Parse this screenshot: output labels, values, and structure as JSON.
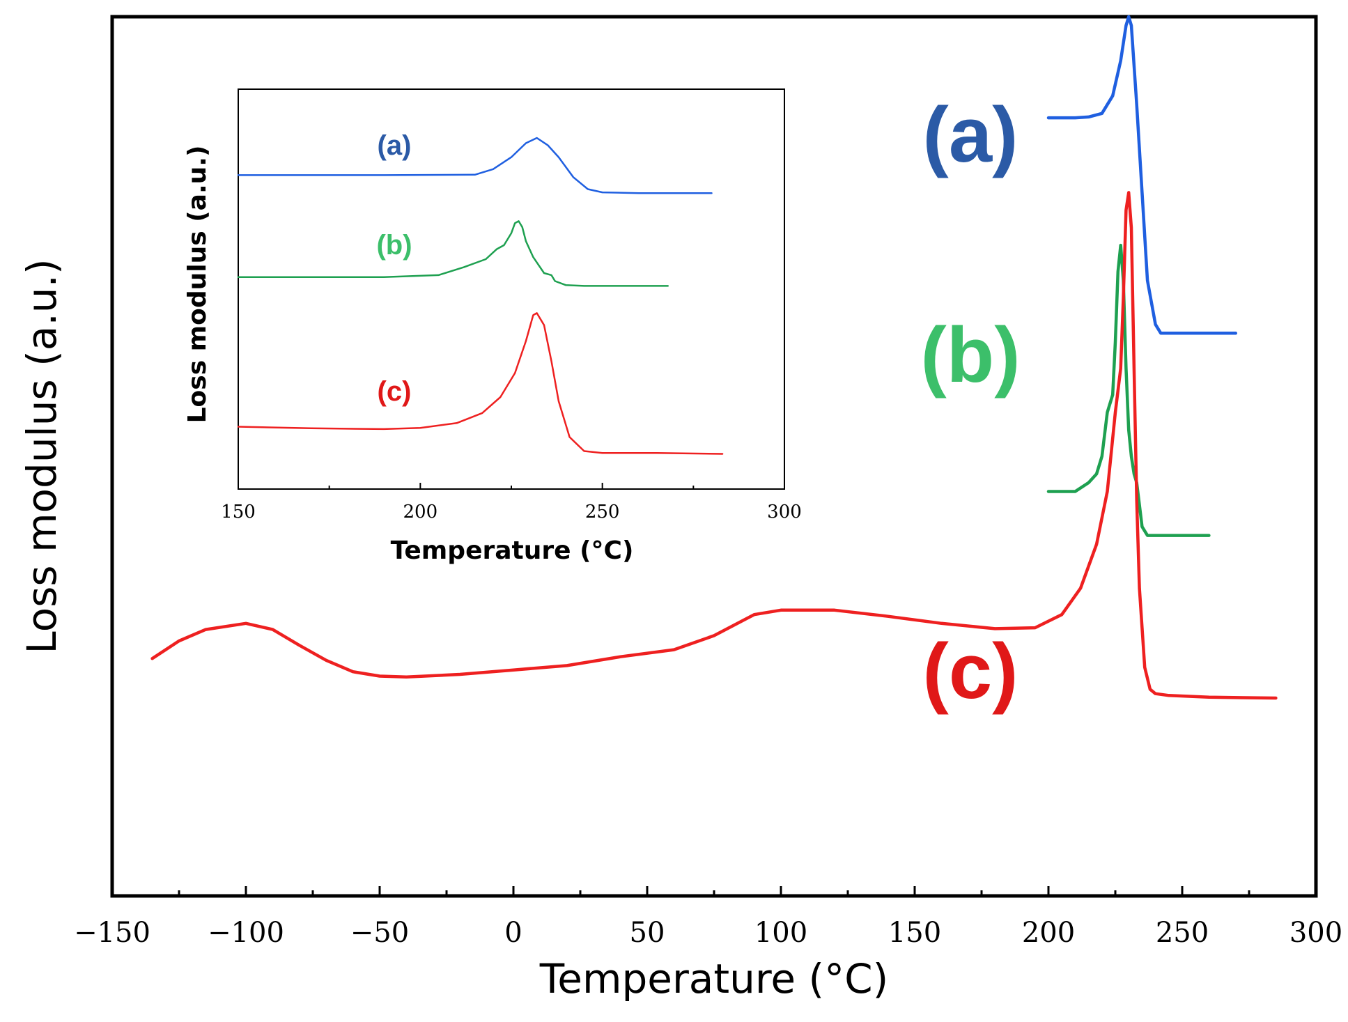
{
  "chart_data": [
    {
      "id": "main",
      "type": "line",
      "xlabel": "Temperature (°C)",
      "ylabel": "Loss modulus (a.u.)",
      "xlim": [
        -150,
        300
      ],
      "ylim": [
        0,
        1
      ],
      "xticks": [
        -150,
        -100,
        -50,
        0,
        50,
        100,
        150,
        200,
        250,
        300
      ],
      "xtick_labels": [
        "−150",
        "−100",
        "−50",
        "0",
        "50",
        "100",
        "150",
        "200",
        "250",
        "300"
      ],
      "y_ticks_shown": false,
      "grid": false,
      "series": [
        {
          "name": "(a)",
          "color": "#1f5fe0",
          "label_color": "#2b5aa6",
          "points": [
            [
              200,
              0.885
            ],
            [
              210,
              0.885
            ],
            [
              215,
              0.886
            ],
            [
              220,
              0.89
            ],
            [
              224,
              0.91
            ],
            [
              227,
              0.95
            ],
            [
              229,
              0.99
            ],
            [
              230,
              1.0
            ],
            [
              231,
              0.99
            ],
            [
              233,
              0.9
            ],
            [
              235,
              0.8
            ],
            [
              237,
              0.7
            ],
            [
              240,
              0.65
            ],
            [
              242,
              0.64
            ],
            [
              245,
              0.64
            ],
            [
              250,
              0.64
            ],
            [
              270,
              0.64
            ]
          ]
        },
        {
          "name": "(b)",
          "color": "#1ea050",
          "label_color": "#3cbf6a",
          "points": [
            [
              200,
              0.46
            ],
            [
              210,
              0.46
            ],
            [
              215,
              0.47
            ],
            [
              218,
              0.48
            ],
            [
              220,
              0.5
            ],
            [
              222,
              0.55
            ],
            [
              224,
              0.57
            ],
            [
              225,
              0.63
            ],
            [
              226,
              0.71
            ],
            [
              227,
              0.74
            ],
            [
              228,
              0.7
            ],
            [
              229,
              0.6
            ],
            [
              230,
              0.53
            ],
            [
              231,
              0.5
            ],
            [
              232,
              0.48
            ],
            [
              233,
              0.47
            ],
            [
              235,
              0.42
            ],
            [
              237,
              0.41
            ],
            [
              240,
              0.41
            ],
            [
              245,
              0.41
            ],
            [
              260,
              0.41
            ]
          ]
        },
        {
          "name": "(c)",
          "color": "#ee2020",
          "label_color": "#e01818",
          "points": [
            [
              -135,
              0.27
            ],
            [
              -125,
              0.29
            ],
            [
              -115,
              0.303
            ],
            [
              -100,
              0.31
            ],
            [
              -90,
              0.303
            ],
            [
              -80,
              0.285
            ],
            [
              -70,
              0.268
            ],
            [
              -60,
              0.255
            ],
            [
              -50,
              0.25
            ],
            [
              -40,
              0.249
            ],
            [
              -20,
              0.252
            ],
            [
              0,
              0.257
            ],
            [
              20,
              0.262
            ],
            [
              40,
              0.272
            ],
            [
              60,
              0.28
            ],
            [
              75,
              0.296
            ],
            [
              90,
              0.32
            ],
            [
              100,
              0.325
            ],
            [
              120,
              0.325
            ],
            [
              140,
              0.318
            ],
            [
              160,
              0.31
            ],
            [
              180,
              0.304
            ],
            [
              195,
              0.305
            ],
            [
              205,
              0.32
            ],
            [
              212,
              0.35
            ],
            [
              218,
              0.4
            ],
            [
              222,
              0.46
            ],
            [
              225,
              0.55
            ],
            [
              227,
              0.6
            ],
            [
              228,
              0.68
            ],
            [
              229,
              0.78
            ],
            [
              230,
              0.8
            ],
            [
              231,
              0.76
            ],
            [
              232,
              0.6
            ],
            [
              233,
              0.45
            ],
            [
              234,
              0.35
            ],
            [
              236,
              0.26
            ],
            [
              238,
              0.235
            ],
            [
              240,
              0.23
            ],
            [
              245,
              0.228
            ],
            [
              260,
              0.226
            ],
            [
              285,
              0.225
            ]
          ]
        }
      ]
    },
    {
      "id": "inset",
      "type": "line",
      "xlabel": "Temperature (°C)",
      "ylabel": "Loss modulus (a.u.)",
      "xlim": [
        150,
        300
      ],
      "ylim": [
        0,
        1
      ],
      "xticks": [
        150,
        200,
        250,
        300
      ],
      "xtick_labels": [
        "150",
        "200",
        "250",
        "300"
      ],
      "y_ticks_shown": false,
      "grid": false,
      "series": [
        {
          "name": "(a)",
          "color": "#1f5fe0",
          "label_color": "#2b5aa6",
          "points": [
            [
              150,
              0.785
            ],
            [
              190,
              0.785
            ],
            [
              215,
              0.786
            ],
            [
              220,
              0.8
            ],
            [
              225,
              0.83
            ],
            [
              229,
              0.865
            ],
            [
              232,
              0.878
            ],
            [
              235,
              0.86
            ],
            [
              238,
              0.83
            ],
            [
              242,
              0.78
            ],
            [
              246,
              0.75
            ],
            [
              250,
              0.742
            ],
            [
              260,
              0.74
            ],
            [
              280,
              0.74
            ]
          ]
        },
        {
          "name": "(b)",
          "color": "#1ea050",
          "label_color": "#3cbf6a",
          "points": [
            [
              150,
              0.53
            ],
            [
              190,
              0.53
            ],
            [
              205,
              0.535
            ],
            [
              212,
              0.555
            ],
            [
              218,
              0.575
            ],
            [
              221,
              0.6
            ],
            [
              223,
              0.61
            ],
            [
              225,
              0.64
            ],
            [
              226,
              0.665
            ],
            [
              227,
              0.67
            ],
            [
              228,
              0.655
            ],
            [
              229,
              0.62
            ],
            [
              231,
              0.58
            ],
            [
              234,
              0.54
            ],
            [
              236,
              0.535
            ],
            [
              237,
              0.52
            ],
            [
              240,
              0.51
            ],
            [
              245,
              0.508
            ],
            [
              255,
              0.508
            ],
            [
              268,
              0.508
            ]
          ]
        },
        {
          "name": "(c)",
          "color": "#ee2020",
          "label_color": "#e01818",
          "points": [
            [
              150,
              0.156
            ],
            [
              170,
              0.152
            ],
            [
              190,
              0.15
            ],
            [
              200,
              0.153
            ],
            [
              210,
              0.165
            ],
            [
              217,
              0.19
            ],
            [
              222,
              0.23
            ],
            [
              226,
              0.29
            ],
            [
              229,
              0.37
            ],
            [
              231,
              0.435
            ],
            [
              232,
              0.44
            ],
            [
              234,
              0.41
            ],
            [
              236,
              0.32
            ],
            [
              238,
              0.22
            ],
            [
              241,
              0.13
            ],
            [
              245,
              0.095
            ],
            [
              250,
              0.09
            ],
            [
              265,
              0.09
            ],
            [
              283,
              0.088
            ]
          ]
        }
      ]
    }
  ]
}
